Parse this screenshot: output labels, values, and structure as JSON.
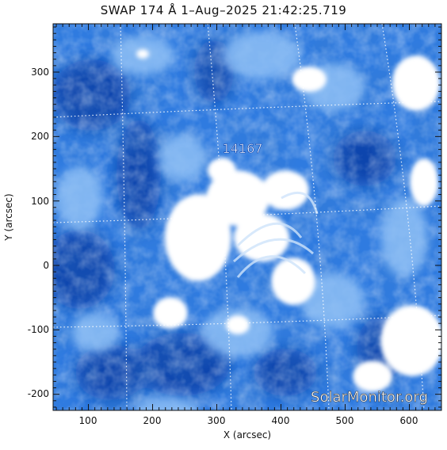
{
  "title": "SWAP 174 Å  1–Aug–2025 21:42:25.719",
  "xlabel": "X (arcsec)",
  "ylabel": "Y (arcsec)",
  "x_ticks": [
    "100",
    "200",
    "300",
    "400",
    "500",
    "600"
  ],
  "y_ticks": [
    "300",
    "200",
    "100",
    "0",
    "-100",
    "-200"
  ],
  "region_label": "14167",
  "watermark": "SolarMonitor.org",
  "colors": {
    "deep_blue": "#0b3fa8",
    "mid_blue": "#2f7be0",
    "light_blue": "#8fc0f5",
    "white": "#ffffff",
    "frame": "#111111"
  },
  "chart_data": {
    "type": "heatmap",
    "xlim": [
      45,
      650
    ],
    "ylim": [
      -225,
      375
    ],
    "xlabel": "X (arcsec)",
    "ylabel": "Y (arcsec)",
    "grid": true,
    "annotation": {
      "text": "14167",
      "x": 345,
      "y": 180
    }
  }
}
